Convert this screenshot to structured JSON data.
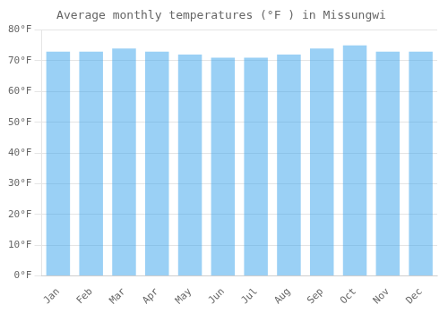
{
  "chart_data": {
    "type": "bar",
    "title": "Average monthly temperatures (°F ) in Missungwi",
    "categories": [
      "Jan",
      "Feb",
      "Mar",
      "Apr",
      "May",
      "Jun",
      "Jul",
      "Aug",
      "Sep",
      "Oct",
      "Nov",
      "Dec"
    ],
    "values": [
      73,
      73,
      74,
      73,
      72,
      71,
      71,
      72,
      74,
      75,
      73,
      73
    ],
    "ylim": [
      0,
      80
    ],
    "yticks": [
      {
        "value": 0,
        "label": "0°F"
      },
      {
        "value": 10,
        "label": "10°F"
      },
      {
        "value": 20,
        "label": "20°F"
      },
      {
        "value": 30,
        "label": "30°F"
      },
      {
        "value": 40,
        "label": "40°F"
      },
      {
        "value": 50,
        "label": "50°F"
      },
      {
        "value": 60,
        "label": "60°F"
      },
      {
        "value": 70,
        "label": "70°F"
      },
      {
        "value": 80,
        "label": "80°F"
      }
    ],
    "grid": true
  }
}
